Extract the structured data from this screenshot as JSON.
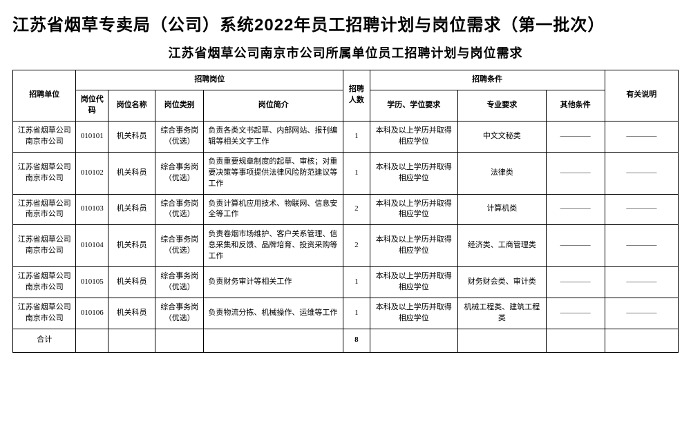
{
  "title_main": "江苏省烟草专卖局（公司）系统2022年员工招聘计划与岗位需求（第一批次）",
  "title_sub": "江苏省烟草公司南京市公司所属单位员工招聘计划与岗位需求",
  "headers": {
    "unit": "招聘单位",
    "position_group": "招聘岗位",
    "code": "岗位代码",
    "pname": "岗位名称",
    "ptype": "岗位类别",
    "desc": "岗位简介",
    "count": "招聘人数",
    "cond_group": "招聘条件",
    "edu": "学历、学位要求",
    "major": "专业要求",
    "other": "其他条件",
    "note": "有关说明",
    "total": "合计"
  },
  "dash": "————",
  "rows": [
    {
      "unit": "江苏省烟草公司南京市公司",
      "code": "010101",
      "pname": "机关科员",
      "ptype": "综合事务岗（优选）",
      "desc": "负责各类文书起草、内部网站、报刊编辑等相关文字工作",
      "count": "1",
      "edu": "本科及以上学历并取得相应学位",
      "major": "中文文秘类",
      "other": "————",
      "note": "————"
    },
    {
      "unit": "江苏省烟草公司南京市公司",
      "code": "010102",
      "pname": "机关科员",
      "ptype": "综合事务岗（优选）",
      "desc": "负责重要规章制度的起草、审核；对重要决策等事项提供法律风险防范建议等工作",
      "count": "1",
      "edu": "本科及以上学历并取得相应学位",
      "major": "法律类",
      "other": "————",
      "note": "————"
    },
    {
      "unit": "江苏省烟草公司南京市公司",
      "code": "010103",
      "pname": "机关科员",
      "ptype": "综合事务岗（优选）",
      "desc": "负责计算机应用技术、物联网、信息安全等工作",
      "count": "2",
      "edu": "本科及以上学历并取得相应学位",
      "major": "计算机类",
      "other": "————",
      "note": "————"
    },
    {
      "unit": "江苏省烟草公司南京市公司",
      "code": "010104",
      "pname": "机关科员",
      "ptype": "综合事务岗（优选）",
      "desc": "负责卷烟市场维护、客户关系管理、信息采集和反馈、品牌培育、投资采购等工作",
      "count": "2",
      "edu": "本科及以上学历并取得相应学位",
      "major": "经济类、工商管理类",
      "other": "————",
      "note": "————"
    },
    {
      "unit": "江苏省烟草公司南京市公司",
      "code": "010105",
      "pname": "机关科员",
      "ptype": "综合事务岗（优选）",
      "desc": "负责财务审计等相关工作",
      "count": "1",
      "edu": "本科及以上学历并取得相应学位",
      "major": "财务财会类、审计类",
      "other": "————",
      "note": "————"
    },
    {
      "unit": "江苏省烟草公司南京市公司",
      "code": "010106",
      "pname": "机关科员",
      "ptype": "综合事务岗（优选）",
      "desc": "负责物流分拣、机械操作、运维等工作",
      "count": "1",
      "edu": "本科及以上学历并取得相应学位",
      "major": "机械工程类、建筑工程类",
      "other": "————",
      "note": "————"
    }
  ],
  "total_count": "8"
}
